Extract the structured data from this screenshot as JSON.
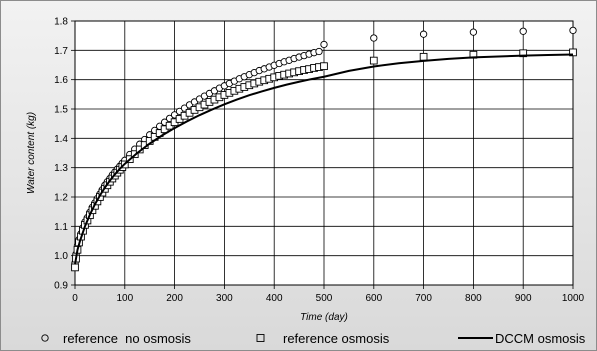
{
  "chart_data": {
    "type": "scatter",
    "xlabel": "Time (day)",
    "ylabel": "Water content (kg)",
    "xlim": [
      0,
      1000
    ],
    "ylim": [
      0.9,
      1.8
    ],
    "xticks": [
      "0",
      "100",
      "200",
      "300",
      "400",
      "500",
      "600",
      "700",
      "800",
      "900",
      "1000"
    ],
    "yticks": [
      "0.9",
      "1.0",
      "1.1",
      "1.2",
      "1.3",
      "1.4",
      "1.5",
      "1.6",
      "1.7",
      "1.8"
    ],
    "grid": true,
    "legend_position": "bottom",
    "series": [
      {
        "name": "reference  no osmosis",
        "marker": "circle",
        "x": [
          0,
          2,
          5,
          8,
          12,
          16,
          20,
          25,
          30,
          35,
          40,
          45,
          50,
          55,
          60,
          65,
          70,
          75,
          80,
          85,
          90,
          95,
          100,
          110,
          120,
          130,
          140,
          150,
          160,
          170,
          180,
          190,
          200,
          210,
          220,
          230,
          240,
          250,
          260,
          270,
          280,
          290,
          300,
          310,
          320,
          330,
          340,
          350,
          360,
          370,
          380,
          390,
          400,
          410,
          420,
          430,
          440,
          450,
          460,
          470,
          480,
          490,
          500,
          600,
          700,
          800,
          900,
          1000
        ],
        "y": [
          0.975,
          1.005,
          1.035,
          1.055,
          1.075,
          1.095,
          1.115,
          1.13,
          1.148,
          1.165,
          1.18,
          1.195,
          1.21,
          1.225,
          1.24,
          1.252,
          1.263,
          1.275,
          1.285,
          1.295,
          1.305,
          1.315,
          1.325,
          1.345,
          1.363,
          1.38,
          1.396,
          1.412,
          1.427,
          1.441,
          1.455,
          1.468,
          1.48,
          1.492,
          1.503,
          1.514,
          1.524,
          1.534,
          1.544,
          1.553,
          1.562,
          1.571,
          1.579,
          1.587,
          1.595,
          1.603,
          1.61,
          1.617,
          1.624,
          1.631,
          1.637,
          1.643,
          1.649,
          1.655,
          1.661,
          1.666,
          1.672,
          1.677,
          1.682,
          1.687,
          1.692,
          1.696,
          1.72,
          1.742,
          1.755,
          1.762,
          1.765,
          1.768
        ]
      },
      {
        "name": "reference osmosis",
        "marker": "square",
        "x": [
          0,
          2,
          5,
          8,
          12,
          16,
          20,
          25,
          30,
          35,
          40,
          45,
          50,
          55,
          60,
          65,
          70,
          75,
          80,
          85,
          90,
          95,
          100,
          110,
          120,
          130,
          140,
          150,
          160,
          170,
          180,
          190,
          200,
          210,
          220,
          230,
          240,
          250,
          260,
          270,
          280,
          290,
          300,
          310,
          320,
          330,
          340,
          350,
          360,
          370,
          380,
          390,
          400,
          410,
          420,
          430,
          440,
          450,
          460,
          470,
          480,
          490,
          500,
          600,
          700,
          800,
          900,
          1000
        ],
        "y": [
          0.96,
          0.99,
          1.02,
          1.045,
          1.065,
          1.085,
          1.105,
          1.12,
          1.138,
          1.155,
          1.17,
          1.185,
          1.2,
          1.215,
          1.228,
          1.24,
          1.252,
          1.263,
          1.273,
          1.283,
          1.293,
          1.302,
          1.311,
          1.329,
          1.346,
          1.362,
          1.377,
          1.391,
          1.405,
          1.418,
          1.431,
          1.443,
          1.455,
          1.466,
          1.477,
          1.487,
          1.497,
          1.506,
          1.515,
          1.524,
          1.532,
          1.54,
          1.548,
          1.555,
          1.562,
          1.569,
          1.575,
          1.581,
          1.587,
          1.593,
          1.598,
          1.603,
          1.608,
          1.613,
          1.617,
          1.621,
          1.625,
          1.629,
          1.633,
          1.636,
          1.64,
          1.643,
          1.646,
          1.665,
          1.678,
          1.685,
          1.69,
          1.693
        ]
      },
      {
        "name": "DCCM osmosis",
        "marker": "line",
        "x": [
          0,
          5,
          10,
          20,
          30,
          40,
          50,
          60,
          70,
          80,
          90,
          100,
          125,
          150,
          175,
          200,
          225,
          250,
          275,
          300,
          325,
          350,
          375,
          400,
          425,
          450,
          475,
          500,
          550,
          600,
          650,
          700,
          750,
          800,
          850,
          900,
          950,
          1000
        ],
        "y": [
          0.97,
          1.02,
          1.05,
          1.1,
          1.14,
          1.175,
          1.205,
          1.232,
          1.256,
          1.277,
          1.296,
          1.313,
          1.35,
          1.382,
          1.41,
          1.435,
          1.458,
          1.479,
          1.498,
          1.516,
          1.532,
          1.547,
          1.56,
          1.572,
          1.583,
          1.593,
          1.602,
          1.61,
          1.63,
          1.645,
          1.656,
          1.664,
          1.671,
          1.676,
          1.679,
          1.682,
          1.684,
          1.686
        ]
      }
    ]
  }
}
